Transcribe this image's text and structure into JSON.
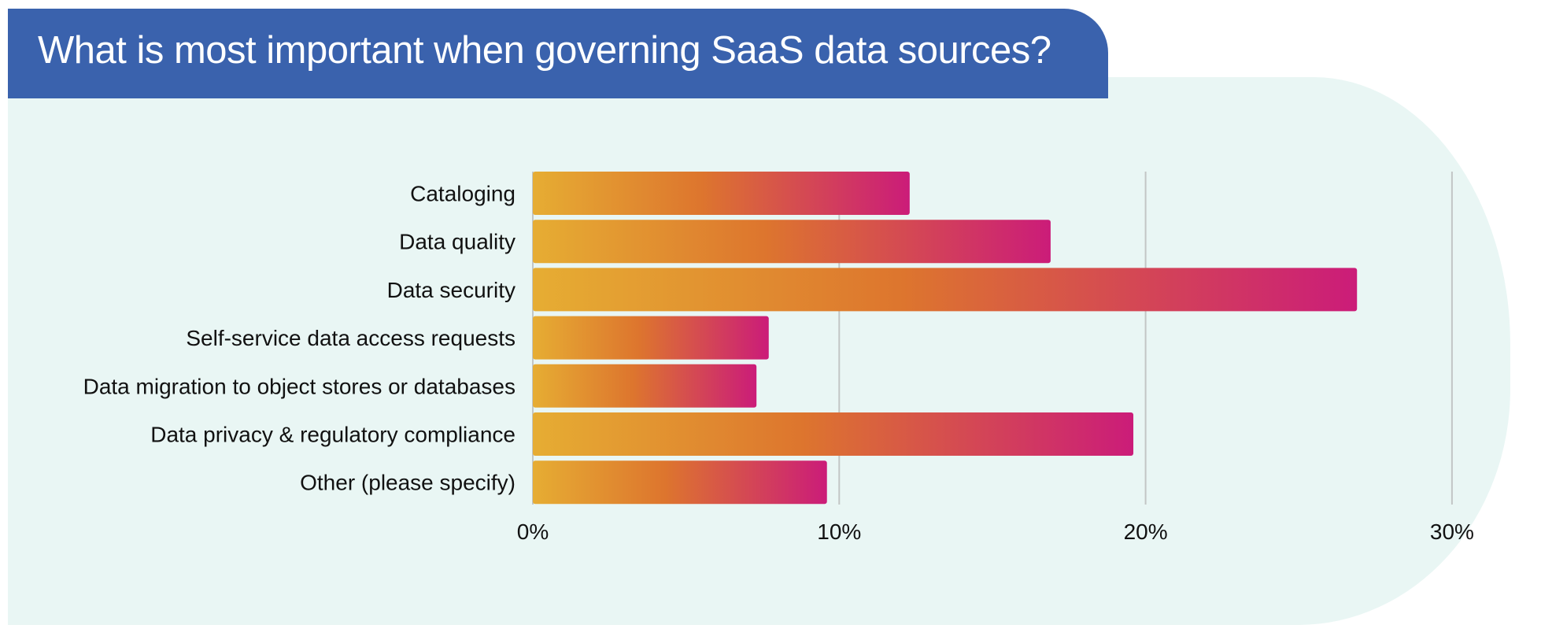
{
  "title": "What is most important when governing SaaS data sources?",
  "colors": {
    "title_bg": "#3a62ad",
    "panel_bg": "#e9f6f4",
    "gridline": "#c2c6c5",
    "bar_gradient": [
      "#e6ad33",
      "#dd752e",
      "#cb1c79"
    ]
  },
  "chart_data": {
    "type": "bar",
    "orientation": "horizontal",
    "title": "What is most important when governing SaaS data sources?",
    "categories": [
      "Cataloging",
      "Data quality",
      "Data security",
      "Self-service data access requests",
      "Data migration to object stores or databases",
      "Data privacy & regulatory compliance",
      "Other (please specify)"
    ],
    "values": [
      12.3,
      16.9,
      26.9,
      7.7,
      7.3,
      19.6,
      9.6
    ],
    "unit": "%",
    "xlim": [
      0,
      30
    ],
    "xticks": [
      0,
      10,
      20,
      30
    ],
    "xtick_labels": [
      "0%",
      "10%",
      "20%",
      "30%"
    ],
    "grid": true,
    "legend": "none"
  }
}
